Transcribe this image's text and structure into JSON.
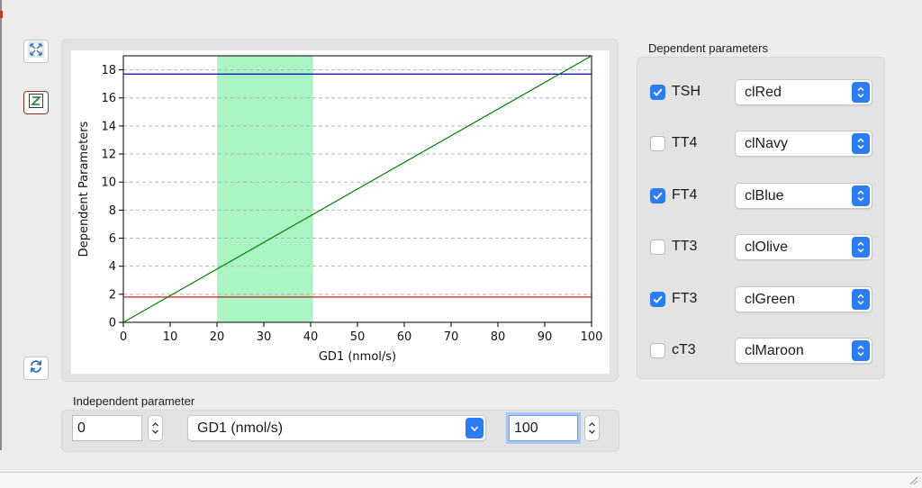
{
  "toolbar": {
    "fit_icon": "expand-arrows-icon",
    "z_icon": "z-toggle-icon",
    "refresh_icon": "refresh-icon"
  },
  "dependent": {
    "title": "Dependent parameters",
    "items": [
      {
        "label": "TSH",
        "checked": true,
        "color": "clRed"
      },
      {
        "label": "TT4",
        "checked": false,
        "color": "clNavy"
      },
      {
        "label": "FT4",
        "checked": true,
        "color": "clBlue"
      },
      {
        "label": "TT3",
        "checked": false,
        "color": "clOlive"
      },
      {
        "label": "FT3",
        "checked": true,
        "color": "clGreen"
      },
      {
        "label": "cT3",
        "checked": false,
        "color": "clMaroon"
      }
    ]
  },
  "independent": {
    "title": "Independent parameter",
    "min_value": "0",
    "parameter": "GD1 (nmol/s)",
    "max_value": "100"
  },
  "chart_data": {
    "type": "line",
    "xlabel": "GD1 (nmol/s)",
    "ylabel": "Dependent Parameters",
    "xlim": [
      0,
      100
    ],
    "ylim": [
      0,
      19
    ],
    "x_ticks": [
      "0",
      "10",
      "20",
      "30",
      "40",
      "50",
      "60",
      "70",
      "80",
      "90",
      "100"
    ],
    "y_ticks": [
      "0",
      "2",
      "4",
      "6",
      "8",
      "10",
      "12",
      "14",
      "16",
      "18"
    ],
    "grid": "horizontal dashed",
    "highlight_band": {
      "x_from": 20,
      "x_to": 40.5,
      "color": "#aaf5c3"
    },
    "series": [
      {
        "color": "#cc0000",
        "x": [
          0,
          100
        ],
        "y": [
          1.8,
          1.8
        ]
      },
      {
        "color": "#0000cc",
        "x": [
          0,
          100
        ],
        "y": [
          17.7,
          17.7
        ]
      },
      {
        "color": "#008000",
        "x": [
          0,
          100
        ],
        "y": [
          0,
          19
        ]
      }
    ]
  }
}
